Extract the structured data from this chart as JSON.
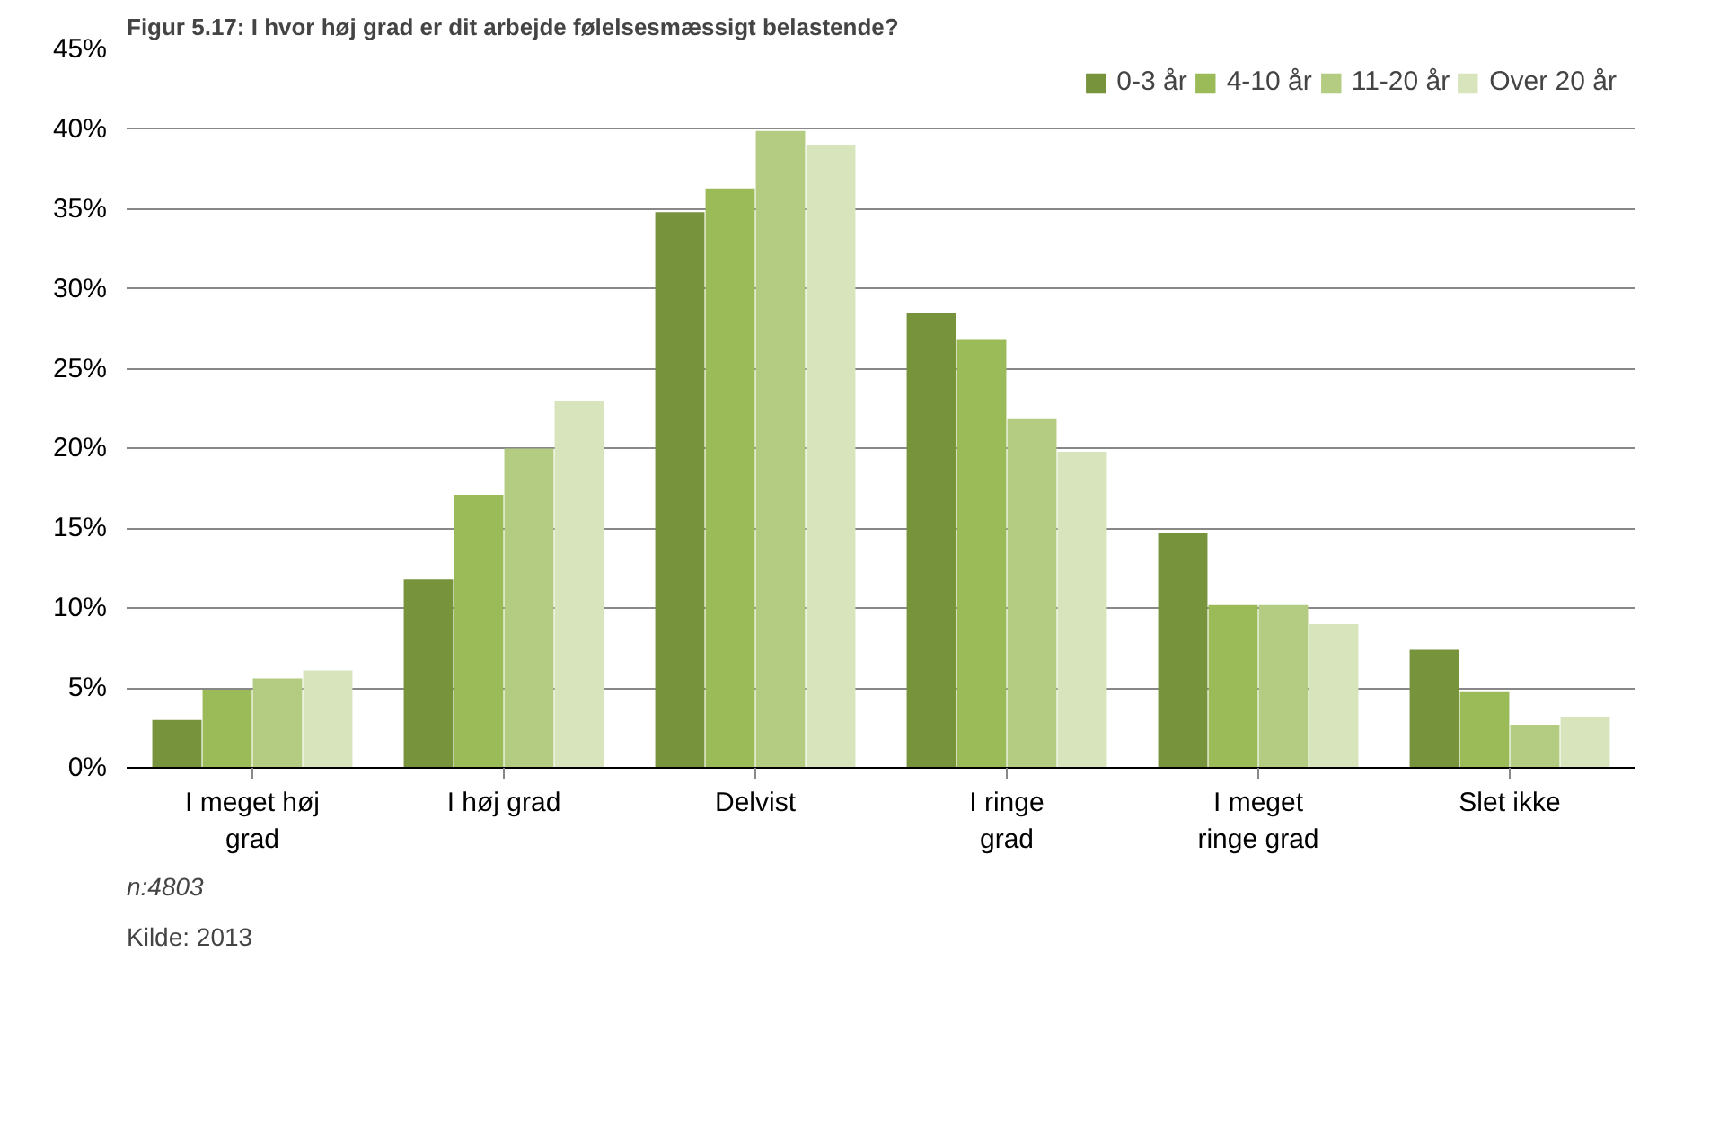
{
  "chart_data": {
    "type": "bar",
    "title": "Figur 5.17: I hvor høj grad er dit arbejde følelsesmæssigt belastende?",
    "categories": [
      "I meget høj grad",
      "I høj grad",
      "Delvist",
      "I ringe grad",
      "I meget ringe grad",
      "Slet ikke"
    ],
    "series": [
      {
        "name": "0-3 år",
        "color": "#77933c",
        "values": [
          3.0,
          11.8,
          34.8,
          28.5,
          14.7,
          7.4
        ]
      },
      {
        "name": "4-10 år",
        "color": "#9bbb59",
        "values": [
          4.9,
          17.1,
          36.3,
          26.8,
          10.2,
          4.8
        ]
      },
      {
        "name": "11-20 år",
        "color": "#b3cc82",
        "values": [
          5.6,
          20.0,
          39.9,
          21.9,
          10.2,
          2.7
        ]
      },
      {
        "name": "Over 20 år",
        "color": "#d7e4bc",
        "values": [
          6.1,
          23.0,
          39.0,
          19.8,
          9.0,
          3.2
        ]
      }
    ],
    "ylim": [
      0,
      45
    ],
    "yticks": [
      {
        "value": 0,
        "label": "0%"
      },
      {
        "value": 5,
        "label": "5%"
      },
      {
        "value": 10,
        "label": "10%"
      },
      {
        "value": 15,
        "label": "15%"
      },
      {
        "value": 20,
        "label": "20%"
      },
      {
        "value": 25,
        "label": "25%"
      },
      {
        "value": 30,
        "label": "30%"
      },
      {
        "value": 35,
        "label": "35%"
      },
      {
        "value": 40,
        "label": "40%"
      },
      {
        "value": 45,
        "label": "45%"
      }
    ],
    "grid": "y",
    "legend": "top right",
    "annotations": [
      "n:4803",
      "Kilde: 2013"
    ]
  }
}
